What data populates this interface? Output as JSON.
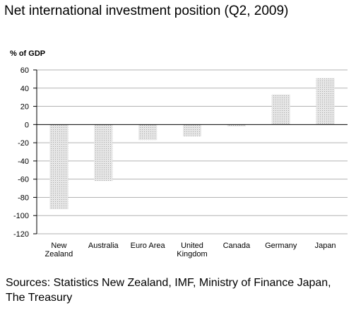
{
  "chart_data": {
    "type": "bar",
    "title": "Net international investment position (Q2, 2009)",
    "ylabel": "% of GDP",
    "categories": [
      "New Zealand",
      "Australia",
      "Euro Area",
      "United Kingdom",
      "Canada",
      "Germany",
      "Japan"
    ],
    "category_lines": [
      [
        "New",
        "Zealand"
      ],
      [
        "Australia"
      ],
      [
        "Euro Area"
      ],
      [
        "United",
        "Kingdom"
      ],
      [
        "Canada"
      ],
      [
        "Germany"
      ],
      [
        "Japan"
      ]
    ],
    "values": [
      -93,
      -62,
      -17,
      -13,
      -2,
      33,
      51
    ],
    "ylim": [
      -120,
      60
    ],
    "yticks": [
      60,
      40,
      20,
      0,
      -20,
      -40,
      -60,
      -80,
      -100,
      -120
    ],
    "grid": true,
    "bar_color": "#d9d9d9",
    "grid_color": "#b3b3b3"
  },
  "sources": "Sources:  Statistics New Zealand, IMF, Ministry of Finance Japan, The Treasury"
}
